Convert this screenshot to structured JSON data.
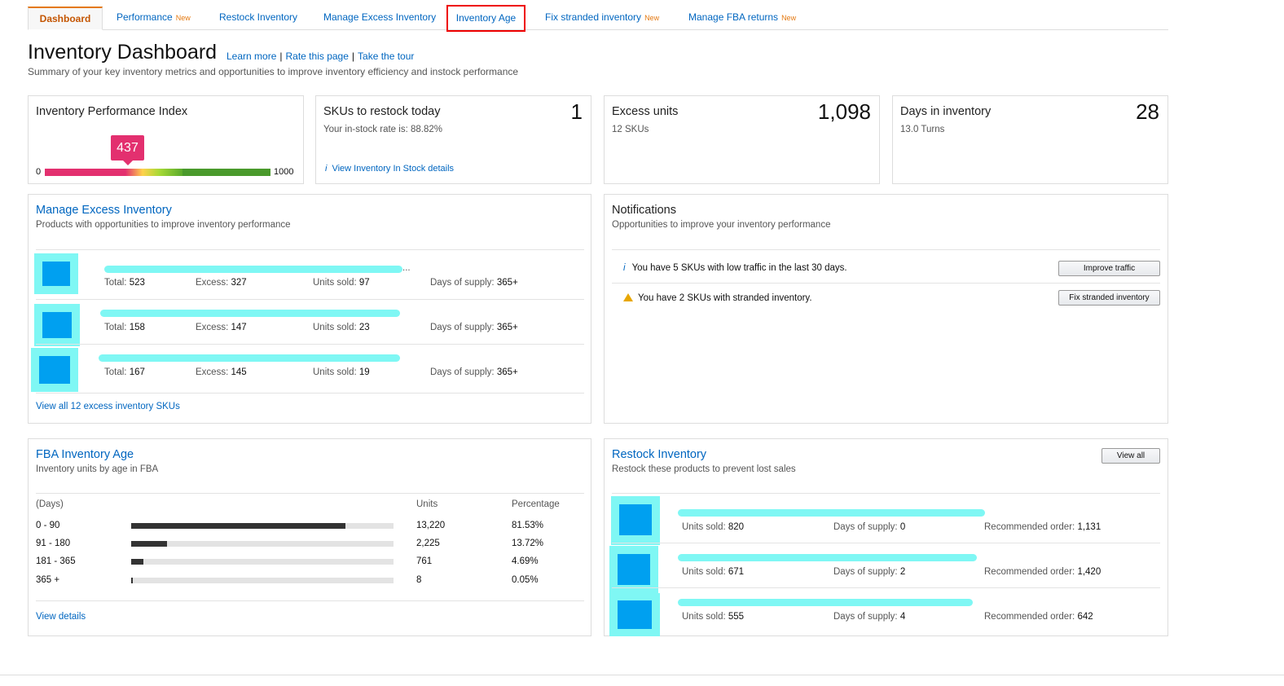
{
  "tabs": [
    {
      "label": "Dashboard",
      "new": ""
    },
    {
      "label": "Performance",
      "new": "New"
    },
    {
      "label": "Restock Inventory",
      "new": ""
    },
    {
      "label": "Manage Excess Inventory",
      "new": ""
    },
    {
      "label": "Inventory Age",
      "new": ""
    },
    {
      "label": "Fix stranded inventory",
      "new": "New"
    },
    {
      "label": "Manage FBA returns",
      "new": "New"
    }
  ],
  "header": {
    "title": "Inventory Dashboard",
    "learn_more": "Learn more",
    "rate_page": "Rate this page",
    "take_tour": "Take the tour",
    "separator": "|",
    "subtitle": "Summary of your key inventory metrics and opportunities to improve inventory efficiency and instock performance"
  },
  "ipi": {
    "title": "Inventory Performance Index",
    "score": "437",
    "min": "0",
    "max": "1000",
    "score_value": 437,
    "max_value": 1000,
    "colors": {
      "low": "#e3306f",
      "high": "#4a9a2c"
    }
  },
  "restock_today": {
    "title": "SKUs to restock today",
    "value": "1",
    "detail": "Your in-stock rate is: 88.82%",
    "link_icon": "i",
    "link": "View Inventory In Stock details"
  },
  "excess_units": {
    "title": "Excess units",
    "value": "1,098",
    "detail": "12 SKUs"
  },
  "days_inventory": {
    "title": "Days in inventory",
    "value": "28",
    "detail": "13.0 Turns"
  },
  "excess_section": {
    "title": "Manage Excess Inventory",
    "subtitle": "Products with opportunities to improve inventory performance",
    "labels": {
      "total": "Total:",
      "excess": "Excess:",
      "units_sold": "Units sold:",
      "days_supply": "Days of supply:"
    },
    "rows": [
      {
        "total": "523",
        "excess": "327",
        "units_sold": "97",
        "days_supply": "365+"
      },
      {
        "total": "158",
        "excess": "147",
        "units_sold": "23",
        "days_supply": "365+"
      },
      {
        "total": "167",
        "excess": "145",
        "units_sold": "19",
        "days_supply": "365+"
      }
    ],
    "first_row_ellipsis": "...",
    "view_all": "View all 12 excess inventory SKUs"
  },
  "notifications": {
    "title": "Notifications",
    "subtitle": "Opportunities to improve your inventory performance",
    "items": [
      {
        "icon": "i",
        "text": "You have 5 SKUs with low traffic in the last 30 days.",
        "button": "Improve traffic"
      },
      {
        "icon": "warning",
        "text": "You have 2 SKUs with stranded inventory.",
        "button": "Fix stranded inventory"
      }
    ]
  },
  "age_section": {
    "title": "FBA Inventory Age",
    "subtitle": "Inventory units by age in FBA",
    "headers": {
      "days": "(Days)",
      "units": "Units",
      "percentage": "Percentage"
    },
    "rows": [
      {
        "range": "0 - 90",
        "units": "13,220",
        "percentage": "81.53%",
        "fraction": 0.8153
      },
      {
        "range": "91 - 180",
        "units": "2,225",
        "percentage": "13.72%",
        "fraction": 0.1372
      },
      {
        "range": "181 - 365",
        "units": "761",
        "percentage": "4.69%",
        "fraction": 0.0469
      },
      {
        "range": "365 +",
        "units": "8",
        "percentage": "0.05%",
        "fraction": 0.0005
      }
    ],
    "view_details": "View details"
  },
  "restock_section": {
    "title": "Restock Inventory",
    "subtitle": "Restock these products to prevent lost sales",
    "view_all": "View all",
    "labels": {
      "units_sold": "Units sold:",
      "days_supply": "Days of supply:",
      "recommended": "Recommended order:"
    },
    "rows": [
      {
        "units_sold": "820",
        "days_supply": "0",
        "recommended": "1,131"
      },
      {
        "units_sold": "671",
        "days_supply": "2",
        "recommended": "1,420"
      },
      {
        "units_sold": "555",
        "days_supply": "4",
        "recommended": "642"
      }
    ]
  }
}
